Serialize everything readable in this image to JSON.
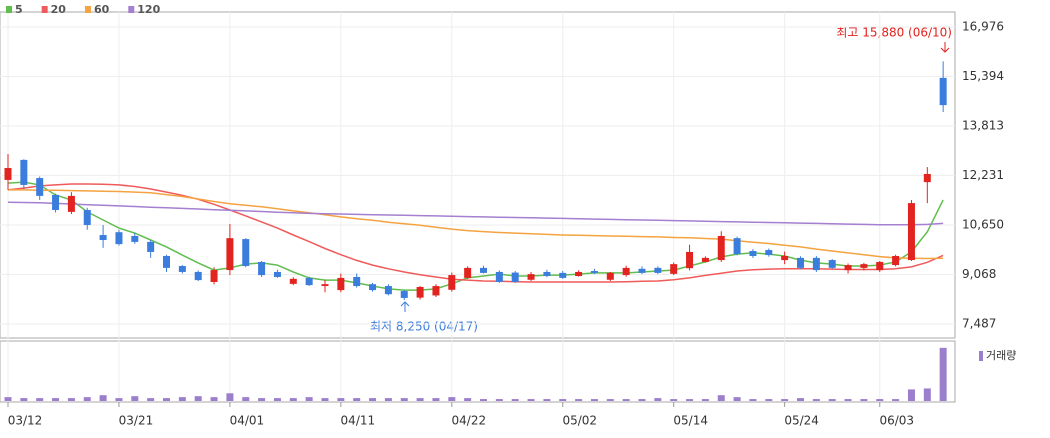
{
  "chart_data": {
    "type": "candlestick",
    "categories": [
      "03/12",
      null,
      null,
      null,
      null,
      null,
      null,
      "03/21",
      null,
      null,
      null,
      null,
      null,
      null,
      "04/01",
      null,
      null,
      null,
      null,
      null,
      null,
      "04/11",
      null,
      null,
      null,
      null,
      null,
      null,
      "04/22",
      null,
      null,
      null,
      null,
      null,
      null,
      "05/02",
      null,
      null,
      null,
      null,
      null,
      null,
      "05/14",
      null,
      null,
      null,
      null,
      null,
      null,
      "05/24",
      null,
      null,
      null,
      null,
      null,
      "06/03",
      null,
      null,
      null,
      null
    ],
    "open": [
      12090,
      12730,
      12150,
      11610,
      11070,
      11130,
      10330,
      10420,
      10300,
      10110,
      9660,
      9340,
      9150,
      8830,
      9210,
      10200,
      9470,
      9150,
      8770,
      8960,
      8700,
      8570,
      8990,
      8760,
      8700,
      8540,
      8330,
      8400,
      8580,
      8960,
      9280,
      9150,
      9130,
      8900,
      9150,
      9120,
      9020,
      9180,
      8900,
      9050,
      9250,
      9280,
      9090,
      9270,
      9470,
      9530,
      10230,
      9820,
      9850,
      9530,
      9600,
      9600,
      9530,
      9210,
      9280,
      9210,
      9370,
      9530,
      12020,
      15350
    ],
    "high": [
      12920,
      12750,
      12200,
      11650,
      11700,
      11200,
      10650,
      10500,
      10400,
      10170,
      9700,
      9370,
      9200,
      9300,
      10680,
      10230,
      9500,
      9220,
      8980,
      9000,
      8900,
      9100,
      9100,
      8800,
      8760,
      8570,
      8700,
      8760,
      9130,
      9330,
      9350,
      9200,
      9180,
      9150,
      9220,
      9180,
      9200,
      9250,
      9150,
      9350,
      9330,
      9330,
      9450,
      10020,
      9650,
      10450,
      10280,
      9880,
      9900,
      9800,
      9650,
      9660,
      9560,
      9420,
      9440,
      9500,
      9700,
      11450,
      12500,
      15880
    ],
    "low": [
      11770,
      11800,
      11450,
      11050,
      11000,
      10500,
      9920,
      9990,
      10050,
      9600,
      9150,
      9100,
      8860,
      8750,
      9050,
      9300,
      8990,
      8960,
      8730,
      8700,
      8500,
      8500,
      8650,
      8520,
      8400,
      8250,
      8270,
      8350,
      8520,
      8930,
      9100,
      8800,
      8800,
      8860,
      8980,
      8930,
      9000,
      9080,
      8860,
      9000,
      9080,
      9080,
      9050,
      9200,
      9450,
      9470,
      9680,
      9600,
      9640,
      9400,
      9250,
      9150,
      9250,
      9100,
      9200,
      9150,
      9330,
      9500,
      11350,
      14260
    ],
    "close": [
      12470,
      11930,
      11580,
      11130,
      11580,
      10650,
      10170,
      10040,
      10110,
      9790,
      9280,
      9150,
      8890,
      9210,
      10230,
      9340,
      9050,
      8990,
      8930,
      8730,
      8760,
      8960,
      8700,
      8570,
      8440,
      8320,
      8670,
      8700,
      9050,
      9280,
      9120,
      8830,
      8830,
      9080,
      9020,
      8960,
      9150,
      9120,
      9120,
      9280,
      9120,
      9120,
      9400,
      9790,
      9600,
      10300,
      9720,
      9660,
      9690,
      9660,
      9280,
      9210,
      9280,
      9370,
      9400,
      9470,
      9660,
      11350,
      12280,
      14480
    ],
    "up_color": "#e3231f",
    "down_color": "#3b7ddd",
    "ylim": [
      7040,
      17455
    ],
    "yticks": [
      {
        "value": 7487,
        "label": "7,487"
      },
      {
        "value": 9068,
        "label": "9,068"
      },
      {
        "value": 10650,
        "label": "10,650"
      },
      {
        "value": 12231,
        "label": "12,231"
      },
      {
        "value": 13813,
        "label": "13,813"
      },
      {
        "value": 15394,
        "label": "15,394"
      },
      {
        "value": 16976,
        "label": "16,976"
      }
    ],
    "grid": true,
    "series": [
      {
        "name": "5",
        "color": "#62bd4f",
        "values": [
          11990,
          12020,
          11930,
          11610,
          11450,
          11070,
          10810,
          10550,
          10390,
          10170,
          9950,
          9690,
          9440,
          9210,
          9280,
          9400,
          9440,
          9370,
          9150,
          8960,
          8890,
          8890,
          8800,
          8700,
          8610,
          8570,
          8570,
          8610,
          8770,
          8960,
          9020,
          9080,
          9020,
          9020,
          9050,
          9050,
          9080,
          9120,
          9120,
          9120,
          9150,
          9180,
          9210,
          9340,
          9470,
          9630,
          9720,
          9760,
          9720,
          9660,
          9530,
          9440,
          9400,
          9340,
          9340,
          9370,
          9470,
          9790,
          10430,
          11450
        ]
      },
      {
        "name": "20",
        "color": "#ef5a5a",
        "values": [
          11770,
          11830,
          11900,
          11930,
          11960,
          11960,
          11950,
          11930,
          11880,
          11800,
          11700,
          11600,
          11470,
          11310,
          11130,
          10940,
          10750,
          10550,
          10330,
          10120,
          9900,
          9700,
          9520,
          9370,
          9250,
          9150,
          9060,
          8990,
          8920,
          8890,
          8860,
          8850,
          8840,
          8830,
          8830,
          8830,
          8830,
          8830,
          8830,
          8840,
          8850,
          8860,
          8900,
          8960,
          9040,
          9110,
          9180,
          9220,
          9240,
          9250,
          9250,
          9250,
          9240,
          9230,
          9230,
          9230,
          9250,
          9310,
          9460,
          9680
        ]
      },
      {
        "name": "60",
        "color": "#f4a340",
        "values": [
          11770,
          11770,
          11760,
          11760,
          11750,
          11740,
          11730,
          11720,
          11700,
          11680,
          11620,
          11560,
          11480,
          11400,
          11330,
          11280,
          11230,
          11170,
          11100,
          11040,
          10980,
          10910,
          10850,
          10800,
          10740,
          10690,
          10640,
          10580,
          10520,
          10470,
          10440,
          10410,
          10390,
          10370,
          10350,
          10330,
          10320,
          10310,
          10300,
          10290,
          10280,
          10270,
          10250,
          10240,
          10220,
          10200,
          10150,
          10100,
          10060,
          10000,
          9950,
          9880,
          9820,
          9760,
          9700,
          9640,
          9600,
          9590,
          9580,
          9590
        ]
      },
      {
        "name": "120",
        "color": "#a57fd0",
        "values": [
          11380,
          11370,
          11360,
          11340,
          11320,
          11300,
          11280,
          11260,
          11240,
          11220,
          11200,
          11180,
          11160,
          11140,
          11120,
          11100,
          11080,
          11060,
          11040,
          11020,
          11010,
          11000,
          10990,
          10980,
          10970,
          10960,
          10950,
          10940,
          10930,
          10920,
          10910,
          10900,
          10890,
          10880,
          10870,
          10860,
          10850,
          10840,
          10830,
          10820,
          10810,
          10800,
          10790,
          10780,
          10770,
          10760,
          10750,
          10740,
          10730,
          10720,
          10710,
          10700,
          10690,
          10680,
          10670,
          10660,
          10660,
          10660,
          10670,
          10700
        ]
      }
    ],
    "volume": {
      "name": "거래량",
      "color": "#9b7fcc",
      "ylim": [
        0,
        60
      ],
      "values": [
        4,
        3,
        3,
        3,
        3,
        4,
        6,
        3,
        5,
        3,
        3,
        4,
        5,
        4,
        8,
        4,
        3,
        3,
        3,
        4,
        3,
        3,
        3,
        3,
        3,
        3,
        3,
        3,
        4,
        3,
        2,
        2,
        2,
        2,
        2,
        2,
        2,
        2,
        2,
        2,
        2,
        3,
        2,
        2,
        2,
        6,
        4,
        2,
        2,
        2,
        3,
        2,
        2,
        2,
        2,
        2,
        2,
        12,
        13,
        55
      ]
    },
    "annotations": [
      "최고 15,880 (06/10)",
      "최저 8,250 (04/17)"
    ]
  }
}
